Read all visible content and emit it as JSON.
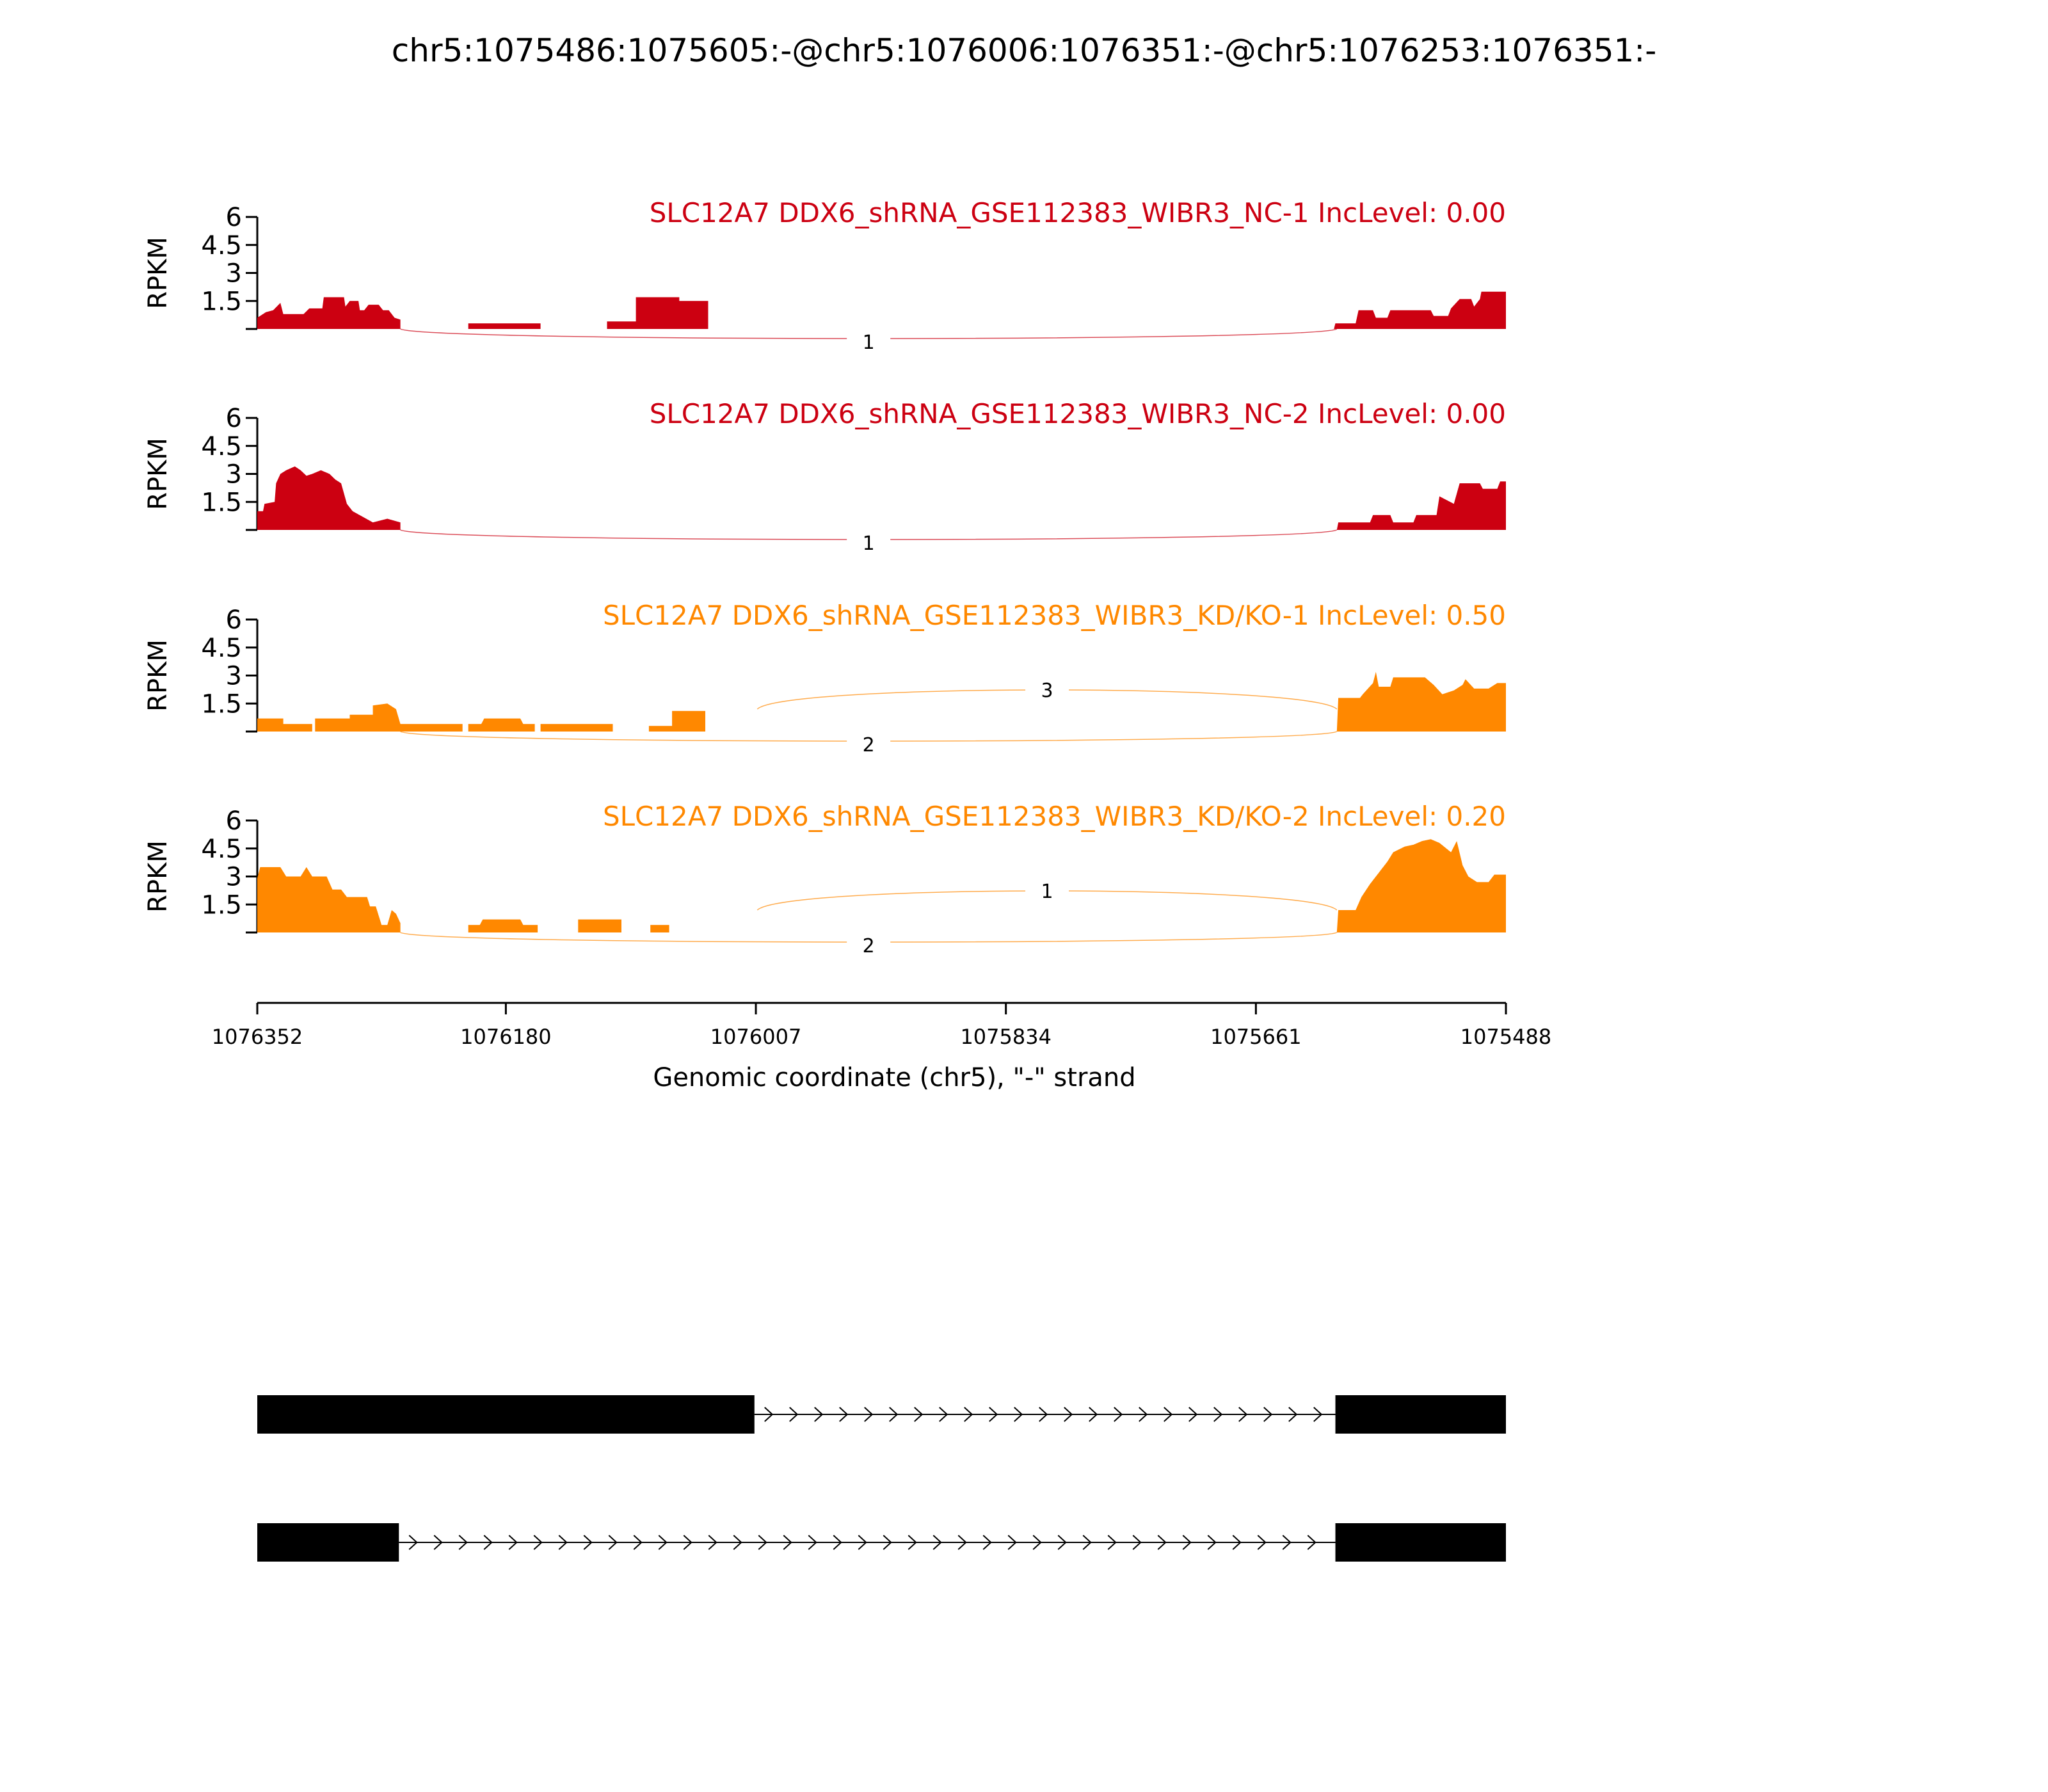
{
  "figure": {
    "title": "chr5:1075486:1075605:-@chr5:1076006:1076351:-@chr5:1076253:1076351:-",
    "xlabel": "Genomic coordinate (chr5), \"-\" strand",
    "ylabel": "RPKM"
  },
  "chart_data": {
    "type": "area",
    "subtype": "sashimi",
    "x_reversed": true,
    "xlim": [
      1076352,
      1075488
    ],
    "x_ticks": [
      1076352,
      1076180,
      1076007,
      1075834,
      1075661,
      1075488
    ],
    "x_tick_labels": [
      "1076352",
      "1076180",
      "1076007",
      "1075834",
      "1075661",
      "1075488"
    ],
    "ylim": [
      0,
      6
    ],
    "y_ticks": [
      1.5,
      3,
      4.5,
      6
    ],
    "y_tick_labels": [
      "1.5",
      "3",
      "4.5",
      "6"
    ],
    "colors": {
      "NC": "#cc0011",
      "KD": "#ff8800"
    },
    "series": [
      {
        "label": "SLC12A7 DDX6_shRNA_GSE112383_WIBR3_NC-1 IncLevel: 0.00",
        "group": "NC",
        "color": "#cc0011",
        "coverage": [
          [
            1076352,
            0.6
          ],
          [
            1076346,
            0.9
          ],
          [
            1076341,
            1.0
          ],
          [
            1076336,
            1.4
          ],
          [
            1076334,
            0.8
          ],
          [
            1076320,
            0.8
          ],
          [
            1076316,
            1.1
          ],
          [
            1076307,
            1.1
          ],
          [
            1076306,
            1.7
          ],
          [
            1076292,
            1.7
          ],
          [
            1076291,
            1.2
          ],
          [
            1076288,
            1.5
          ],
          [
            1076282,
            1.5
          ],
          [
            1076281,
            1.0
          ],
          [
            1076278,
            1.0
          ],
          [
            1076275,
            1.3
          ],
          [
            1076268,
            1.3
          ],
          [
            1076265,
            1.0
          ],
          [
            1076261,
            1.0
          ],
          [
            1076257,
            0.6
          ],
          [
            1076253,
            0.5
          ],
          [
            1076253,
            0
          ],
          [
            1076206,
            0
          ],
          [
            1076206,
            0.3
          ],
          [
            1076156,
            0.3
          ],
          [
            1076156,
            0
          ],
          [
            1076110,
            0
          ],
          [
            1076110,
            0.4
          ],
          [
            1076090,
            0.4
          ],
          [
            1076090,
            1.7
          ],
          [
            1076060,
            1.7
          ],
          [
            1076060,
            1.5
          ],
          [
            1076040,
            1.5
          ],
          [
            1076040,
            0
          ],
          [
            1075607,
            0
          ],
          [
            1075606,
            0.3
          ],
          [
            1075592,
            0.3
          ],
          [
            1075590,
            1.0
          ],
          [
            1075580,
            1.0
          ],
          [
            1075578,
            0.6
          ],
          [
            1075570,
            0.6
          ],
          [
            1075568,
            1.0
          ],
          [
            1075540,
            1.0
          ],
          [
            1075538,
            0.7
          ],
          [
            1075528,
            0.7
          ],
          [
            1075526,
            1.1
          ],
          [
            1075520,
            1.6
          ],
          [
            1075512,
            1.6
          ],
          [
            1075510,
            1.2
          ],
          [
            1075506,
            1.6
          ],
          [
            1075505,
            2.0
          ],
          [
            1075488,
            2.0
          ]
        ],
        "junctions": [
          {
            "start": 1076253,
            "end": 1075605,
            "count": 1,
            "side": "below"
          }
        ]
      },
      {
        "label": "SLC12A7 DDX6_shRNA_GSE112383_WIBR3_NC-2 IncLevel: 0.00",
        "group": "NC",
        "color": "#cc0011",
        "coverage": [
          [
            1076352,
            1.0
          ],
          [
            1076348,
            1.0
          ],
          [
            1076347,
            1.4
          ],
          [
            1076340,
            1.5
          ],
          [
            1076339,
            2.5
          ],
          [
            1076336,
            3.0
          ],
          [
            1076332,
            3.2
          ],
          [
            1076326,
            3.4
          ],
          [
            1076322,
            3.2
          ],
          [
            1076318,
            2.9
          ],
          [
            1076314,
            3.0
          ],
          [
            1076308,
            3.2
          ],
          [
            1076302,
            3.0
          ],
          [
            1076298,
            2.7
          ],
          [
            1076294,
            2.5
          ],
          [
            1076290,
            1.4
          ],
          [
            1076286,
            1.0
          ],
          [
            1076272,
            0.4
          ],
          [
            1076262,
            0.6
          ],
          [
            1076253,
            0.4
          ],
          [
            1076253,
            0
          ],
          [
            1075605,
            0
          ],
          [
            1075604,
            0.4
          ],
          [
            1075582,
            0.4
          ],
          [
            1075580,
            0.8
          ],
          [
            1075568,
            0.8
          ],
          [
            1075566,
            0.4
          ],
          [
            1075552,
            0.4
          ],
          [
            1075550,
            0.8
          ],
          [
            1075536,
            0.8
          ],
          [
            1075534,
            1.8
          ],
          [
            1075524,
            1.4
          ],
          [
            1075520,
            2.5
          ],
          [
            1075506,
            2.5
          ],
          [
            1075504,
            2.2
          ],
          [
            1075494,
            2.2
          ],
          [
            1075492,
            2.6
          ],
          [
            1075488,
            2.6
          ]
        ],
        "junctions": [
          {
            "start": 1076253,
            "end": 1075605,
            "count": 1,
            "side": "below"
          }
        ]
      },
      {
        "label": "SLC12A7 DDX6_shRNA_GSE112383_WIBR3_KD/KO-1 IncLevel: 0.50",
        "group": "KD",
        "color": "#ff8800",
        "coverage": [
          [
            1076352,
            0.7
          ],
          [
            1076334,
            0.7
          ],
          [
            1076334,
            0.4
          ],
          [
            1076314,
            0.4
          ],
          [
            1076314,
            0
          ],
          [
            1076312,
            0
          ],
          [
            1076312,
            0.7
          ],
          [
            1076288,
            0.7
          ],
          [
            1076288,
            0.9
          ],
          [
            1076272,
            0.9
          ],
          [
            1076272,
            1.4
          ],
          [
            1076262,
            1.5
          ],
          [
            1076256,
            1.2
          ],
          [
            1076253,
            0.4
          ],
          [
            1076210,
            0.4
          ],
          [
            1076210,
            0
          ],
          [
            1076206,
            0
          ],
          [
            1076206,
            0.4
          ],
          [
            1076197,
            0.4
          ],
          [
            1076195,
            0.7
          ],
          [
            1076177,
            0.7
          ],
          [
            1076170,
            0.7
          ],
          [
            1076168,
            0.4
          ],
          [
            1076160,
            0.4
          ],
          [
            1076160,
            0
          ],
          [
            1076156,
            0
          ],
          [
            1076156,
            0.4
          ],
          [
            1076106,
            0.4
          ],
          [
            1076106,
            0
          ],
          [
            1076081,
            0
          ],
          [
            1076081,
            0.3
          ],
          [
            1076065,
            0.3
          ],
          [
            1076065,
            1.1
          ],
          [
            1076042,
            1.1
          ],
          [
            1076042,
            0
          ],
          [
            1075605,
            0
          ],
          [
            1075604,
            1.8
          ],
          [
            1075589,
            1.8
          ],
          [
            1075587,
            2.0
          ],
          [
            1075580,
            2.6
          ],
          [
            1075578,
            3.2
          ],
          [
            1075576,
            2.4
          ],
          [
            1075568,
            2.4
          ],
          [
            1075566,
            2.9
          ],
          [
            1075544,
            2.9
          ],
          [
            1075538,
            2.5
          ],
          [
            1075532,
            2.0
          ],
          [
            1075524,
            2.2
          ],
          [
            1075518,
            2.5
          ],
          [
            1075516,
            2.8
          ],
          [
            1075510,
            2.3
          ],
          [
            1075500,
            2.3
          ],
          [
            1075494,
            2.6
          ],
          [
            1075488,
            2.6
          ]
        ],
        "junctions": [
          {
            "start": 1076006,
            "end": 1075605,
            "count": 3,
            "side": "above"
          },
          {
            "start": 1076253,
            "end": 1075605,
            "count": 2,
            "side": "below"
          }
        ]
      },
      {
        "label": "SLC12A7 DDX6_shRNA_GSE112383_WIBR3_KD/KO-2 IncLevel: 0.20",
        "group": "KD",
        "color": "#ff8800",
        "coverage": [
          [
            1076352,
            2.9
          ],
          [
            1076350,
            3.5
          ],
          [
            1076336,
            3.5
          ],
          [
            1076332,
            3.0
          ],
          [
            1076322,
            3.0
          ],
          [
            1076318,
            3.5
          ],
          [
            1076314,
            3.0
          ],
          [
            1076304,
            3.0
          ],
          [
            1076300,
            2.3
          ],
          [
            1076294,
            2.3
          ],
          [
            1076290,
            1.9
          ],
          [
            1076276,
            1.9
          ],
          [
            1076274,
            1.4
          ],
          [
            1076270,
            1.4
          ],
          [
            1076266,
            0.4
          ],
          [
            1076262,
            0.4
          ],
          [
            1076259,
            1.2
          ],
          [
            1076256,
            1.0
          ],
          [
            1076253,
            0.5
          ],
          [
            1076253,
            0
          ],
          [
            1076206,
            0
          ],
          [
            1076206,
            0.4
          ],
          [
            1076198,
            0.4
          ],
          [
            1076196,
            0.7
          ],
          [
            1076170,
            0.7
          ],
          [
            1076168,
            0.4
          ],
          [
            1076158,
            0.4
          ],
          [
            1076158,
            0
          ],
          [
            1076130,
            0
          ],
          [
            1076130,
            0.7
          ],
          [
            1076100,
            0.7
          ],
          [
            1076100,
            0
          ],
          [
            1076080,
            0
          ],
          [
            1076080,
            0.4
          ],
          [
            1076067,
            0.4
          ],
          [
            1076067,
            0
          ],
          [
            1075605,
            0
          ],
          [
            1075604,
            1.2
          ],
          [
            1075592,
            1.2
          ],
          [
            1075588,
            1.9
          ],
          [
            1075582,
            2.6
          ],
          [
            1075576,
            3.2
          ],
          [
            1075570,
            3.8
          ],
          [
            1075566,
            4.3
          ],
          [
            1075558,
            4.6
          ],
          [
            1075552,
            4.7
          ],
          [
            1075546,
            4.9
          ],
          [
            1075540,
            5.0
          ],
          [
            1075534,
            4.8
          ],
          [
            1075526,
            4.3
          ],
          [
            1075522,
            4.9
          ],
          [
            1075518,
            3.6
          ],
          [
            1075514,
            3.0
          ],
          [
            1075508,
            2.7
          ],
          [
            1075500,
            2.7
          ],
          [
            1075496,
            3.1
          ],
          [
            1075488,
            3.1
          ]
        ],
        "junctions": [
          {
            "start": 1076006,
            "end": 1075605,
            "count": 1,
            "side": "above"
          },
          {
            "start": 1076253,
            "end": 1075605,
            "count": 2,
            "side": "below"
          }
        ]
      }
    ],
    "transcripts": [
      {
        "exons": [
          [
            1076352,
            1076008
          ],
          [
            1075606,
            1075488
          ]
        ],
        "direction": "right"
      },
      {
        "exons": [
          [
            1076352,
            1076254
          ],
          [
            1075606,
            1075488
          ]
        ],
        "direction": "right"
      }
    ]
  }
}
